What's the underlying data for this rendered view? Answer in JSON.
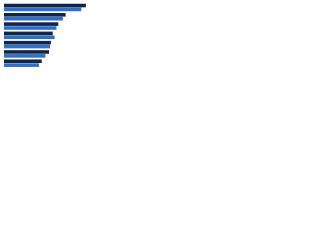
{
  "chart_data": {
    "type": "grouped-barh",
    "categories": [
      null,
      null,
      null,
      null,
      null,
      null,
      null
    ],
    "series": [
      {
        "color": "#0f2549",
        "values": [
          89,
          67,
          59,
          53,
          51,
          49,
          41
        ]
      },
      {
        "color": "#2f6fc6",
        "values": [
          84,
          64,
          57,
          55,
          50,
          45,
          38
        ]
      }
    ],
    "xlim": [
      0,
      100
    ]
  }
}
